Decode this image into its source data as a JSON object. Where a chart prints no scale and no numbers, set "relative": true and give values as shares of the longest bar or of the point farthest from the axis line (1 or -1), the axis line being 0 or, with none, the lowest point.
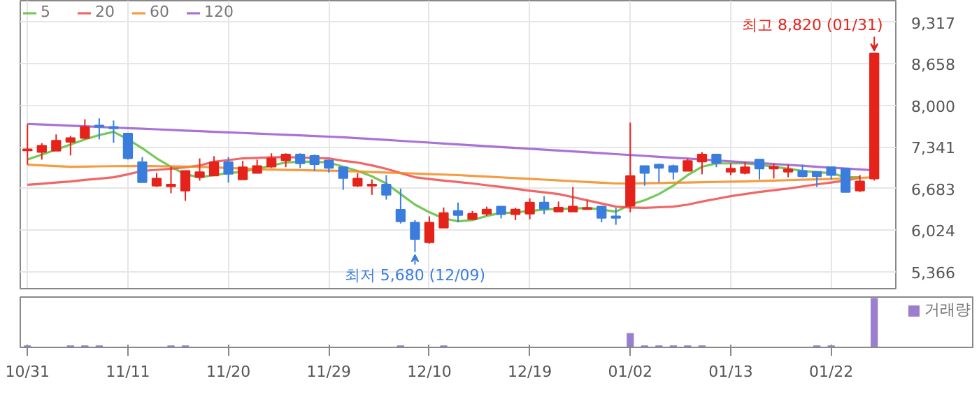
{
  "chart_data": [
    {
      "type": "candlestick",
      "legend": "top left",
      "grid": true,
      "tick_labels": "y",
      "marker": "none",
      "line_style": "solid",
      "categories": [
        null,
        null,
        null,
        null,
        null,
        null,
        null,
        null,
        null,
        null,
        null,
        null,
        null,
        null,
        null,
        null,
        null,
        null,
        null,
        null,
        null,
        null,
        null,
        null,
        null,
        null,
        null,
        null,
        null,
        null,
        null,
        null,
        null,
        null,
        null,
        null,
        null,
        null,
        null,
        null,
        null,
        null,
        null,
        null,
        null,
        null,
        null,
        null,
        null,
        null,
        null,
        null,
        null,
        null,
        null,
        null,
        null,
        null,
        null,
        null
      ],
      "ylim": [
        5100,
        9656
      ],
      "yticks": [
        {
          "value": 5366,
          "label": "5,366"
        },
        {
          "value": 6024,
          "label": "6,024"
        },
        {
          "value": 6683,
          "label": "6,683"
        },
        {
          "value": 7341,
          "label": "7,341"
        },
        {
          "value": 8000,
          "label": "8,000"
        },
        {
          "value": 8658,
          "label": "8,658"
        },
        {
          "value": 9317,
          "label": "9,317"
        }
      ],
      "ohlc": [
        [
          7286,
          7701,
          7062,
          7306
        ],
        [
          7262,
          7402,
          7142,
          7362
        ],
        [
          7282,
          7541,
          7282,
          7442
        ],
        [
          7422,
          7516,
          7208,
          7482
        ],
        [
          7482,
          7781,
          7462,
          7661
        ],
        [
          7681,
          7795,
          7462,
          7661
        ],
        [
          7661,
          7761,
          7408,
          7635
        ],
        [
          7555,
          7555,
          7142,
          7162
        ],
        [
          7102,
          7182,
          6783,
          6783
        ],
        [
          6729,
          6929,
          6709,
          6843
        ],
        [
          6717,
          7029,
          6610,
          6749
        ],
        [
          6650,
          6963,
          6490,
          6963
        ],
        [
          6863,
          7162,
          6809,
          6943
        ],
        [
          6889,
          7196,
          6889,
          7102
        ],
        [
          7102,
          7182,
          6777,
          6917
        ],
        [
          6829,
          7122,
          6829,
          7022
        ],
        [
          6929,
          7142,
          6929,
          7042
        ],
        [
          7029,
          7242,
          7009,
          7162
        ],
        [
          7129,
          7242,
          7022,
          7222
        ],
        [
          7222,
          7242,
          7009,
          7082
        ],
        [
          7202,
          7222,
          6963,
          7069
        ],
        [
          7129,
          7142,
          6936,
          7009
        ],
        [
          7022,
          7022,
          6664,
          6849
        ],
        [
          6729,
          6929,
          6709,
          6843
        ],
        [
          6729,
          6829,
          6584,
          6749
        ],
        [
          6749,
          6897,
          6510,
          6584
        ],
        [
          6350,
          6684,
          6131,
          6165
        ],
        [
          6145,
          6185,
          5680,
          5886
        ],
        [
          5832,
          6245,
          5812,
          6145
        ],
        [
          6065,
          6384,
          6065,
          6298
        ],
        [
          6331,
          6464,
          6151,
          6265
        ],
        [
          6199,
          6331,
          6185,
          6285
        ],
        [
          6285,
          6398,
          6251,
          6351
        ],
        [
          6398,
          6398,
          6211,
          6279
        ],
        [
          6279,
          6378,
          6185,
          6351
        ],
        [
          6285,
          6530,
          6198,
          6464
        ],
        [
          6464,
          6564,
          6279,
          6364
        ],
        [
          6318,
          6478,
          6318,
          6384
        ],
        [
          6318,
          6709,
          6318,
          6398
        ],
        [
          6358,
          6498,
          6351,
          6378
        ],
        [
          6398,
          6398,
          6151,
          6219
        ],
        [
          6245,
          6378,
          6111,
          6219
        ],
        [
          6410,
          7727,
          6310,
          6883
        ],
        [
          7042,
          7042,
          6729,
          6929
        ],
        [
          7062,
          7076,
          6783,
          7009
        ],
        [
          7042,
          7062,
          6829,
          6949
        ],
        [
          6963,
          7162,
          6963,
          7122
        ],
        [
          7109,
          7262,
          6909,
          7222
        ],
        [
          7222,
          7222,
          7022,
          7089
        ],
        [
          6949,
          7082,
          6897,
          7000
        ],
        [
          6929,
          7102,
          6909,
          7022
        ],
        [
          7142,
          7142,
          6829,
          7000
        ],
        [
          7000,
          7076,
          6843,
          7029
        ],
        [
          6949,
          7062,
          6863,
          6989
        ],
        [
          6963,
          7062,
          6863,
          6877
        ],
        [
          6949,
          6949,
          6709,
          6877
        ],
        [
          7022,
          7022,
          6829,
          6897
        ],
        [
          7000,
          7000,
          6630,
          6630
        ],
        [
          6650,
          6897,
          6630,
          6797
        ],
        [
          6843,
          8820,
          6809,
          8820
        ]
      ],
      "colors": [
        "#e5231b",
        "#e5231b",
        "#e5231b",
        "#e5231b",
        "#e5231b",
        "#3b7ddd",
        "#3b7ddd",
        "#3b7ddd",
        "#3b7ddd",
        "#e5231b",
        "#e5231b",
        "#e5231b",
        "#e5231b",
        "#e5231b",
        "#3b7ddd",
        "#e5231b",
        "#e5231b",
        "#e5231b",
        "#e5231b",
        "#3b7ddd",
        "#3b7ddd",
        "#3b7ddd",
        "#3b7ddd",
        "#e5231b",
        "#e5231b",
        "#3b7ddd",
        "#3b7ddd",
        "#3b7ddd",
        "#e5231b",
        "#e5231b",
        "#3b7ddd",
        "#e5231b",
        "#e5231b",
        "#3b7ddd",
        "#e5231b",
        "#e5231b",
        "#3b7ddd",
        "#e5231b",
        "#e5231b",
        "#e5231b",
        "#3b7ddd",
        "#3b7ddd",
        "#e5231b",
        "#3b7ddd",
        "#3b7ddd",
        "#3b7ddd",
        "#e5231b",
        "#e5231b",
        "#3b7ddd",
        "#e5231b",
        "#e5231b",
        "#3b7ddd",
        "#e5231b",
        "#e5231b",
        "#3b7ddd",
        "#3b7ddd",
        "#3b7ddd",
        "#3b7ddd",
        "#e5231b",
        "#e5231b"
      ],
      "series": [
        {
          "type": "line",
          "name": "5",
          "color": "#5cbf3b",
          "values": [
            7142,
            7220,
            7300,
            7380,
            7460,
            7530,
            7581,
            7462,
            7322,
            7162,
            7029,
            6909,
            6863,
            6897,
            6929,
            6949,
            6997,
            7049,
            7096,
            7109,
            7109,
            7096,
            7029,
            6963,
            6877,
            6764,
            6597,
            6430,
            6310,
            6211,
            6165,
            6185,
            6251,
            6298,
            6305,
            6331,
            6351,
            6364,
            6364,
            6378,
            6351,
            6318,
            6430,
            6498,
            6597,
            6730,
            6897,
            7029,
            7082,
            7082,
            7082,
            7062,
            7029,
            6997,
            6963,
            6943,
            6929,
            6863,
            6863,
            null
          ]
        },
        {
          "type": "line",
          "name": "20",
          "color": "#ef4b4b",
          "values": [
            6743,
            6760,
            6780,
            6797,
            6820,
            6840,
            6863,
            6910,
            6963,
            6980,
            6997,
            7020,
            7049,
            7109,
            7135,
            7162,
            7170,
            7178,
            7182,
            7175,
            7168,
            7162,
            7122,
            7096,
            7050,
            6997,
            6929,
            6863,
            6835,
            6810,
            6787,
            6764,
            6737,
            6710,
            6680,
            6650,
            6624,
            6597,
            6548,
            6498,
            6448,
            6398,
            6384,
            6378,
            6388,
            6398,
            6430,
            6478,
            6521,
            6564,
            6597,
            6630,
            6657,
            6684,
            6717,
            6750,
            6780,
            6810,
            6860,
            null
          ]
        },
        {
          "type": "line",
          "name": "60",
          "color": "#f5891f",
          "values": [
            7062,
            7050,
            7040,
            7029,
            7032,
            7035,
            7038,
            7040,
            7042,
            7038,
            7035,
            7032,
            7029,
            7020,
            7010,
            7000,
            6990,
            6983,
            6979,
            6975,
            6971,
            6967,
            6963,
            6955,
            6946,
            6938,
            6930,
            6922,
            6913,
            6905,
            6897,
            6885,
            6873,
            6861,
            6849,
            6837,
            6825,
            6812,
            6800,
            6788,
            6776,
            6764,
            6764,
            6768,
            6772,
            6776,
            6780,
            6784,
            6789,
            6793,
            6797,
            6804,
            6810,
            6817,
            6823,
            6830,
            6836,
            6843,
            6853,
            6863
          ]
        },
        {
          "type": "line",
          "name": "120",
          "color": "#9b59d0",
          "values": [
            7707,
            7697,
            7688,
            7678,
            7669,
            7659,
            7649,
            7640,
            7630,
            7621,
            7611,
            7601,
            7592,
            7582,
            7573,
            7563,
            7553,
            7544,
            7534,
            7525,
            7515,
            7505,
            7495,
            7481,
            7467,
            7453,
            7439,
            7425,
            7411,
            7397,
            7383,
            7369,
            7355,
            7341,
            7327,
            7313,
            7299,
            7285,
            7271,
            7257,
            7243,
            7229,
            7215,
            7201,
            7186,
            7172,
            7158,
            7144,
            7129,
            7115,
            7101,
            7086,
            7072,
            7058,
            7044,
            7029,
            7015,
            7001,
            6986,
            6972
          ]
        }
      ],
      "annotations": [
        "최고 8,820 (01/31)",
        "최저 5,680 (12/09)"
      ]
    },
    {
      "type": "bar",
      "relative": true,
      "legend": "top right",
      "tick_labels": "x",
      "categories": [
        "10/31",
        null,
        null,
        null,
        null,
        null,
        null,
        "11/11",
        null,
        null,
        null,
        null,
        null,
        null,
        "11/20",
        null,
        null,
        null,
        null,
        null,
        null,
        "11/29",
        null,
        null,
        null,
        null,
        null,
        null,
        "12/10",
        null,
        null,
        null,
        null,
        null,
        null,
        "12/19",
        null,
        null,
        null,
        null,
        null,
        null,
        "01/02",
        null,
        null,
        null,
        null,
        null,
        null,
        "01/13",
        null,
        null,
        null,
        null,
        null,
        null,
        "01/22",
        null,
        null,
        null
      ],
      "series": [
        {
          "name": "거래량",
          "color": "#9a7fcf",
          "values": [
            0.04,
            null,
            null,
            0.04,
            0.04,
            0.04,
            null,
            null,
            null,
            null,
            0.04,
            0.04,
            null,
            null,
            null,
            null,
            null,
            null,
            null,
            null,
            null,
            null,
            null,
            null,
            null,
            null,
            0.04,
            null,
            null,
            0.04,
            null,
            null,
            null,
            null,
            null,
            null,
            null,
            null,
            null,
            null,
            null,
            null,
            0.29,
            0.04,
            0.04,
            0.04,
            0.04,
            0.04,
            null,
            null,
            null,
            null,
            null,
            null,
            null,
            0.04,
            0.04,
            null,
            null,
            1
          ]
        }
      ]
    }
  ]
}
